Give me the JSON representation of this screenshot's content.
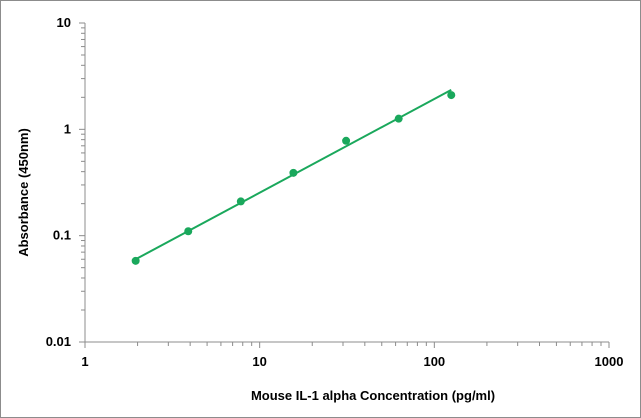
{
  "chart_data": {
    "type": "scatter",
    "title": "",
    "xlabel": "Mouse IL-1 alpha Concentration (pg/ml)",
    "ylabel": "Absorbance (450nm)",
    "x_scale": "log",
    "y_scale": "log",
    "xlim": [
      1,
      1000
    ],
    "ylim": [
      0.01,
      10
    ],
    "x_ticks": [
      "1",
      "10",
      "100",
      "1000"
    ],
    "y_ticks": [
      "0.01",
      "0.1",
      "1",
      "10"
    ],
    "grid": false,
    "legend": "none",
    "colors": {
      "series": "#1aa85c",
      "axis": "#8c8c8c"
    },
    "series": [
      {
        "kind": "points",
        "x": [
          1.95,
          3.9,
          7.8,
          15.6,
          31.25,
          62.5,
          125
        ],
        "y": [
          0.058,
          0.11,
          0.21,
          0.39,
          0.78,
          1.26,
          2.1
        ]
      },
      {
        "kind": "fit-line",
        "x": [
          1.95,
          125
        ],
        "y": [
          0.06,
          2.35
        ]
      }
    ]
  }
}
